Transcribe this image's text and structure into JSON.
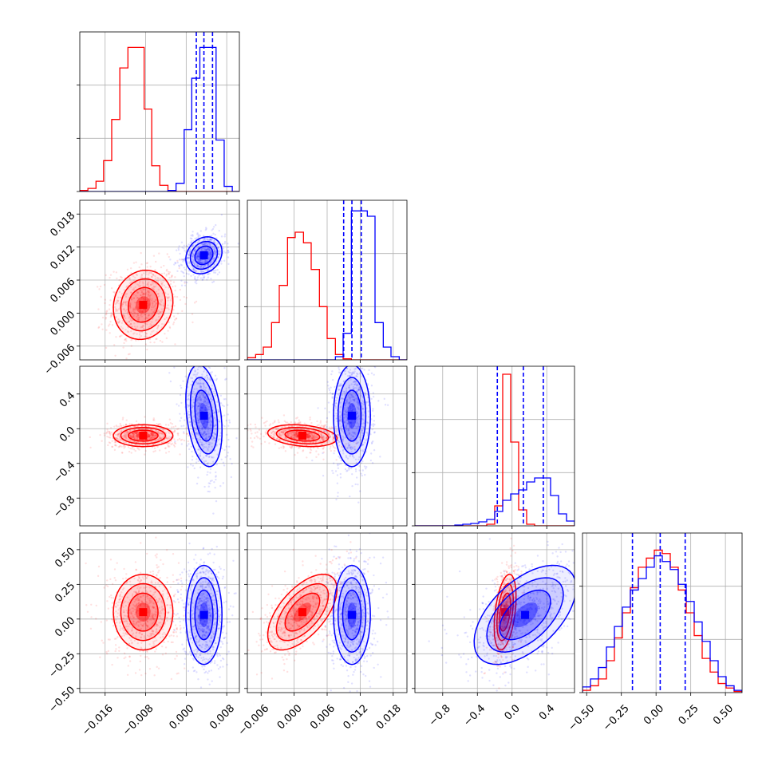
{
  "colors": {
    "red": "#ff0000",
    "blue": "#0000ff",
    "grid": "#b0b0b0",
    "axis": "#000000"
  },
  "chart_data": {
    "type": "corner",
    "grid": true,
    "params": [
      {
        "range": [
          -0.021,
          0.0105
        ],
        "ticks": [
          "−0.016",
          "−0.008",
          "0.000",
          "0.008"
        ],
        "tick_values": [
          -0.016,
          -0.008,
          0.0,
          0.008
        ]
      },
      {
        "range": [
          -0.0085,
          0.0205
        ],
        "ticks": [
          "−0.006",
          "0.000",
          "0.006",
          "0.012",
          "0.018"
        ],
        "tick_values": [
          -0.006,
          0.0,
          0.006,
          0.012,
          0.018
        ]
      },
      {
        "range": [
          -1.12,
          0.72
        ],
        "ticks": [
          "−0.8",
          "−0.4",
          "0.0",
          "0.4"
        ],
        "tick_values": [
          -0.8,
          -0.4,
          0.0,
          0.4
        ]
      },
      {
        "range": [
          -0.53,
          0.62
        ],
        "ticks": [
          "−0.50",
          "−0.25",
          "0.00",
          "0.25",
          "0.50"
        ],
        "tick_values": [
          -0.5,
          -0.25,
          0.0,
          0.25,
          0.5
        ]
      }
    ],
    "series": [
      {
        "color": "red",
        "mean": [
          -0.0085,
          0.0015,
          -0.08,
          0.05
        ],
        "sd": [
          0.0028,
          0.003,
          0.06,
          0.13
        ],
        "corr": {
          "0-1": 0.1,
          "0-2": 0.0,
          "0-3": 0.0,
          "1-2": -0.25,
          "1-3": 0.6,
          "2-3": 0.4
        }
      },
      {
        "color": "blue",
        "mean": [
          0.0035,
          0.0105,
          0.15,
          0.03
        ],
        "sd": [
          0.0017,
          0.0016,
          0.28,
          0.17
        ],
        "corr": {
          "0-1": 0.2,
          "0-2": -0.3,
          "0-3": 0.0,
          "1-2": 0.0,
          "1-3": 0.0,
          "2-3": 0.55
        },
        "quantiles": [
          [
            0.002,
            0.0035,
            0.0052
          ],
          [
            0.009,
            0.0105,
            0.0122
          ],
          [
            -0.17,
            0.13,
            0.36
          ],
          [
            -0.17,
            0.03,
            0.21
          ]
        ]
      }
    ],
    "histograms": [
      {
        "edges": [
          -0.021,
          -0.0194,
          -0.0178,
          -0.0163,
          -0.0147,
          -0.0131,
          -0.0115,
          -0.0099,
          -0.0083,
          -0.0068,
          -0.0052,
          -0.0036,
          -0.002,
          -0.0004,
          0.0011,
          0.0027,
          0.0043,
          0.0059,
          0.0075,
          0.0091,
          0.0105
        ],
        "red": [
          1,
          3,
          10,
          30,
          70,
          120,
          140,
          140,
          80,
          25,
          6,
          1,
          0,
          0,
          0,
          0,
          0,
          0,
          0,
          0
        ],
        "blue": [
          0,
          0,
          0,
          0,
          0,
          0,
          0,
          0,
          0,
          0,
          0,
          1,
          8,
          60,
          110,
          140,
          140,
          50,
          5,
          0
        ],
        "ylim": [
          0,
          155
        ]
      },
      {
        "edges": [
          -0.0085,
          -0.007,
          -0.0056,
          -0.0041,
          -0.0027,
          -0.0012,
          0.0002,
          0.0017,
          0.0031,
          0.0046,
          0.006,
          0.0075,
          0.0089,
          0.0104,
          0.0118,
          0.0133,
          0.0147,
          0.0162,
          0.0176,
          0.0191,
          0.0205
        ],
        "red": [
          2,
          5,
          12,
          35,
          70,
          115,
          120,
          110,
          85,
          50,
          20,
          5,
          1,
          0,
          0,
          0,
          0,
          0,
          0,
          0
        ],
        "blue": [
          0,
          0,
          0,
          0,
          0,
          0,
          0,
          0,
          0,
          0,
          0,
          3,
          25,
          140,
          140,
          135,
          35,
          12,
          3,
          0
        ],
        "ylim": [
          0,
          150
        ]
      },
      {
        "edges": [
          -1.12,
          -1.028,
          -0.936,
          -0.844,
          -0.752,
          -0.66,
          -0.568,
          -0.476,
          -0.384,
          -0.292,
          -0.2,
          -0.108,
          -0.016,
          0.076,
          0.168,
          0.26,
          0.352,
          0.444,
          0.536,
          0.628,
          0.72
        ],
        "red": [
          0,
          0,
          0,
          0,
          0,
          0,
          0,
          0,
          0,
          2,
          25,
          190,
          105,
          20,
          2,
          0,
          0,
          0,
          0,
          0
        ],
        "blue": [
          0,
          0,
          0,
          0,
          0,
          1,
          2,
          3,
          5,
          8,
          18,
          32,
          40,
          45,
          55,
          60,
          60,
          38,
          15,
          6
        ],
        "ylim": [
          0,
          200
        ]
      },
      {
        "edges": [
          -0.53,
          -0.4725,
          -0.415,
          -0.3575,
          -0.3,
          -0.2425,
          -0.185,
          -0.1275,
          -0.07,
          -0.0125,
          0.045,
          0.1025,
          0.16,
          0.2175,
          0.275,
          0.3325,
          0.39,
          0.4475,
          0.505,
          0.5625,
          0.62
        ],
        "red": [
          2,
          6,
          12,
          28,
          48,
          70,
          92,
          110,
          118,
          125,
          122,
          110,
          90,
          70,
          50,
          30,
          18,
          8,
          4,
          1
        ],
        "blue": [
          5,
          12,
          22,
          40,
          58,
          75,
          90,
          100,
          110,
          120,
          115,
          108,
          95,
          80,
          62,
          45,
          28,
          14,
          6,
          2
        ],
        "ylim": [
          0,
          140
        ]
      }
    ]
  }
}
